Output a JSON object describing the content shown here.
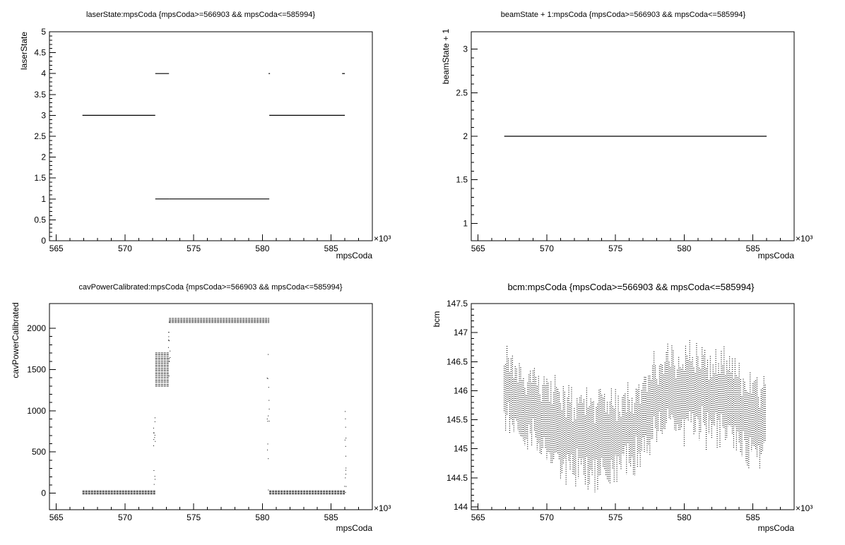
{
  "chart_data": [
    {
      "type": "scatter",
      "title": "laserState:mpsCoda {mpsCoda>=566903 && mpsCoda<=585994}",
      "xlabel": "mpsCoda",
      "ylabel": "laserState",
      "x_exponent_label": "×10³",
      "xlim": [
        564.5,
        588
      ],
      "ylim": [
        0,
        5
      ],
      "xticks": [
        565,
        570,
        575,
        580,
        585
      ],
      "yticks": [
        0,
        0.5,
        1,
        1.5,
        2,
        2.5,
        3,
        3.5,
        4,
        4.5,
        5
      ],
      "segments": [
        {
          "x0": 566.9,
          "x1": 572.2,
          "y": 3
        },
        {
          "x0": 572.2,
          "x1": 573.2,
          "y": 4
        },
        {
          "x0": 572.2,
          "x1": 573.2,
          "y": 1
        },
        {
          "x0": 573.2,
          "x1": 580.5,
          "y": 1
        },
        {
          "x0": 580.5,
          "x1": 586.0,
          "y": 3
        },
        {
          "x0": 580.45,
          "x1": 580.55,
          "y": 4
        },
        {
          "x0": 585.8,
          "x1": 586.0,
          "y": 4
        }
      ]
    },
    {
      "type": "scatter",
      "title": "beamState + 1:mpsCoda {mpsCoda>=566903 && mpsCoda<=585994}",
      "xlabel": "mpsCoda",
      "ylabel": "beamState + 1",
      "x_exponent_label": "×10³",
      "xlim": [
        564.5,
        588
      ],
      "ylim": [
        0.8,
        3.2
      ],
      "xticks": [
        565,
        570,
        575,
        580,
        585
      ],
      "yticks": [
        1,
        1.5,
        2,
        2.5,
        3
      ],
      "segments": [
        {
          "x0": 566.9,
          "x1": 586.0,
          "y": 2
        }
      ]
    },
    {
      "type": "scatter",
      "title": "cavPowerCalibrated:mpsCoda {mpsCoda>=566903 && mpsCoda<=585994}",
      "xlabel": "mpsCoda",
      "ylabel": "cavPowerCalibrated",
      "x_exponent_label": "×10³",
      "xlim": [
        564.5,
        588
      ],
      "ylim": [
        -200,
        2300
      ],
      "xticks": [
        565,
        570,
        575,
        580,
        585
      ],
      "yticks": [
        0,
        500,
        1000,
        1500,
        2000
      ],
      "bands": [
        {
          "x0": 566.9,
          "x1": 572.2,
          "ylow": -10,
          "yhigh": 30
        },
        {
          "x0": 572.2,
          "x1": 573.2,
          "ylow": 1300,
          "yhigh": 1700
        },
        {
          "x0": 573.2,
          "x1": 580.5,
          "ylow": 2070,
          "yhigh": 2120
        },
        {
          "x0": 580.5,
          "x1": 586.0,
          "ylow": -10,
          "yhigh": 30
        }
      ],
      "transitions": [
        {
          "x": 572.1,
          "ylow": 0,
          "yhigh": 1000
        },
        {
          "x": 573.2,
          "ylow": 1300,
          "yhigh": 2100
        },
        {
          "x": 580.4,
          "ylow": 0,
          "yhigh": 2100
        },
        {
          "x": 586.0,
          "ylow": 0,
          "yhigh": 1000
        }
      ]
    },
    {
      "type": "scatter",
      "title": "bcm:mpsCoda {mpsCoda>=566903 && mpsCoda<=585994}",
      "xlabel": "mpsCoda",
      "ylabel": "bcm",
      "x_exponent_label": "×10³",
      "xlim": [
        564.5,
        588
      ],
      "ylim": [
        143.95,
        147.5
      ],
      "xticks": [
        565,
        570,
        575,
        580,
        585
      ],
      "yticks": [
        144,
        144.5,
        145,
        145.5,
        146,
        146.5,
        147,
        147.5
      ],
      "trend": [
        {
          "x": 566.9,
          "center": 146.0,
          "spread": 0.55
        },
        {
          "x": 568.0,
          "center": 145.8,
          "spread": 0.55
        },
        {
          "x": 569.0,
          "center": 145.7,
          "spread": 0.55
        },
        {
          "x": 570.0,
          "center": 145.6,
          "spread": 0.6
        },
        {
          "x": 571.0,
          "center": 145.3,
          "spread": 0.6
        },
        {
          "x": 572.0,
          "center": 145.2,
          "spread": 0.65
        },
        {
          "x": 573.0,
          "center": 145.2,
          "spread": 0.65
        },
        {
          "x": 574.0,
          "center": 145.2,
          "spread": 0.65
        },
        {
          "x": 575.0,
          "center": 145.2,
          "spread": 0.65
        },
        {
          "x": 576.0,
          "center": 145.4,
          "spread": 0.6
        },
        {
          "x": 577.0,
          "center": 145.5,
          "spread": 0.6
        },
        {
          "x": 578.0,
          "center": 145.8,
          "spread": 0.6
        },
        {
          "x": 579.0,
          "center": 146.0,
          "spread": 0.6
        },
        {
          "x": 580.0,
          "center": 146.0,
          "spread": 0.65
        },
        {
          "x": 581.0,
          "center": 146.0,
          "spread": 0.6
        },
        {
          "x": 582.0,
          "center": 145.9,
          "spread": 0.6
        },
        {
          "x": 583.0,
          "center": 145.8,
          "spread": 0.6
        },
        {
          "x": 584.0,
          "center": 145.7,
          "spread": 0.6
        },
        {
          "x": 585.0,
          "center": 145.5,
          "spread": 0.6
        },
        {
          "x": 586.0,
          "center": 145.5,
          "spread": 0.6
        }
      ]
    }
  ]
}
